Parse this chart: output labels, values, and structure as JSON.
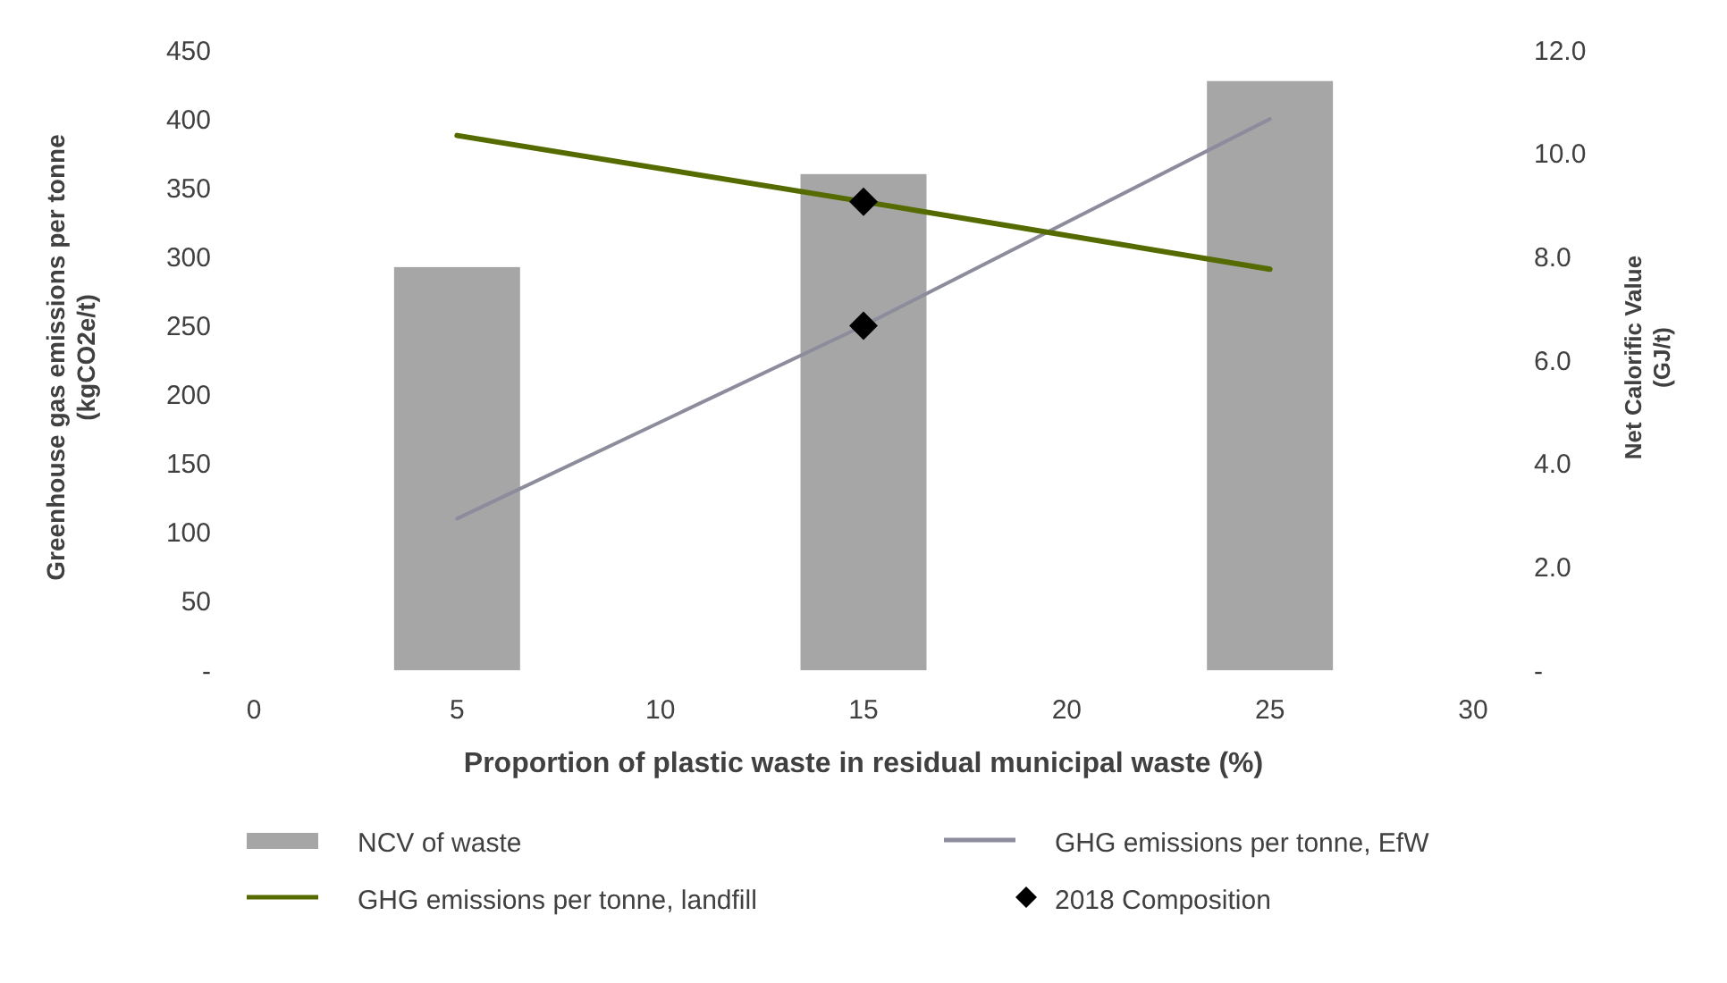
{
  "chart_data": {
    "type": "line",
    "xlabel": "Proportion of plastic waste in residual municipal waste (%)",
    "ylabel": "Greenhouse gas emissions per tonne (kgCO2e/t)",
    "y2label": "Net Calorific Value (GJ/t)",
    "xlim": [
      0,
      30
    ],
    "xticks": [
      0,
      5,
      10,
      15,
      20,
      25,
      30
    ],
    "ylim": [
      0,
      450
    ],
    "yticks": [
      {
        "value": 0,
        "label": "-"
      },
      50,
      100,
      150,
      200,
      250,
      300,
      350,
      400,
      450
    ],
    "y2lim": [
      0,
      12
    ],
    "y2ticks": [
      {
        "value": 0,
        "label": "-"
      },
      {
        "value": 2,
        "label": "2.0"
      },
      {
        "value": 4,
        "label": "4.0"
      },
      {
        "value": 6,
        "label": "6.0"
      },
      {
        "value": 8,
        "label": "8.0"
      },
      {
        "value": 10,
        "label": "10.0"
      },
      {
        "value": 12,
        "label": "12.0"
      }
    ],
    "grid": false,
    "legend": "bottom",
    "series": [
      {
        "name": "NCV of waste",
        "type": "bar",
        "axis": "y2",
        "color": "#a6a6a6",
        "x": [
          5,
          15,
          25
        ],
        "values": [
          7.8,
          9.6,
          11.4
        ]
      },
      {
        "name": "GHG emissions per tonne, EfW",
        "color": "#8c8c9c",
        "x": [
          5,
          15,
          25
        ],
        "values": [
          110,
          250,
          400
        ],
        "marker": "none"
      },
      {
        "name": "GHG emissions per tonne, landfill",
        "color": "#556b00",
        "x": [
          5,
          15,
          25
        ],
        "values": [
          388,
          340,
          291
        ],
        "marker": "none"
      },
      {
        "name": "2018 Composition",
        "type": "scatter",
        "color": "#000000",
        "x": [
          15,
          15
        ],
        "values": [
          340,
          250
        ],
        "marker": "diamond"
      }
    ]
  }
}
